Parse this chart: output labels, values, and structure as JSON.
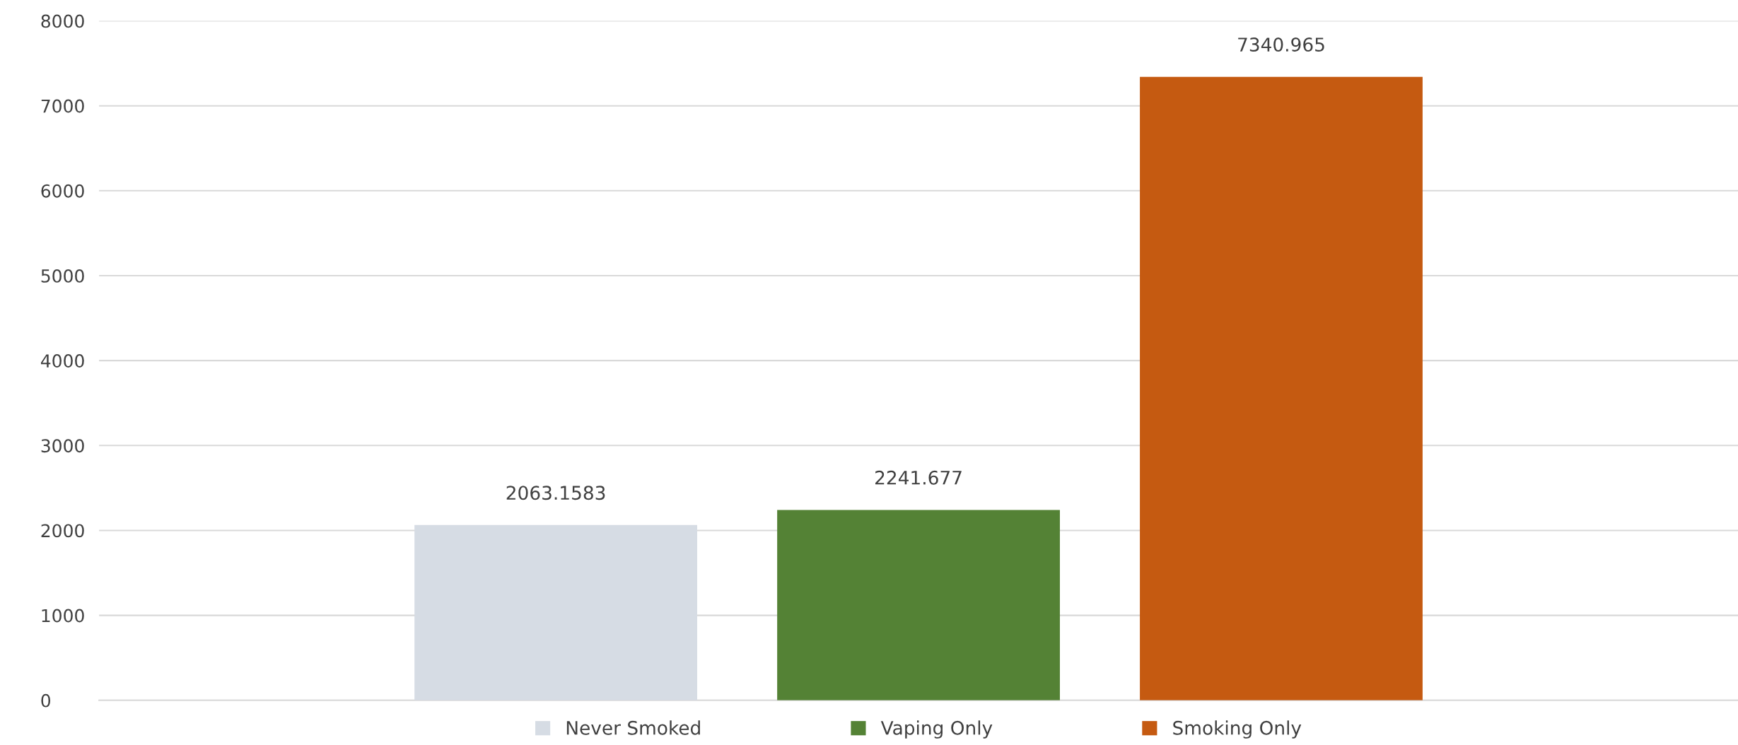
{
  "chart_data": {
    "type": "bar",
    "categories": [
      null
    ],
    "series": [
      {
        "name": "Never Smoked",
        "color": "#d6dce4",
        "values": [
          2063.1583
        ]
      },
      {
        "name": "Vaping Only",
        "color": "#548235",
        "values": [
          2241.677
        ]
      },
      {
        "name": "Smoking Only",
        "color": "#c55a11",
        "values": [
          7340.965
        ]
      }
    ],
    "ylim": [
      0,
      8000
    ],
    "yticks": [
      0,
      1000,
      2000,
      3000,
      4000,
      5000,
      6000,
      7000,
      8000
    ],
    "grid": "y",
    "legend": "bottom",
    "data_labels": true,
    "tick_labels": "y"
  }
}
